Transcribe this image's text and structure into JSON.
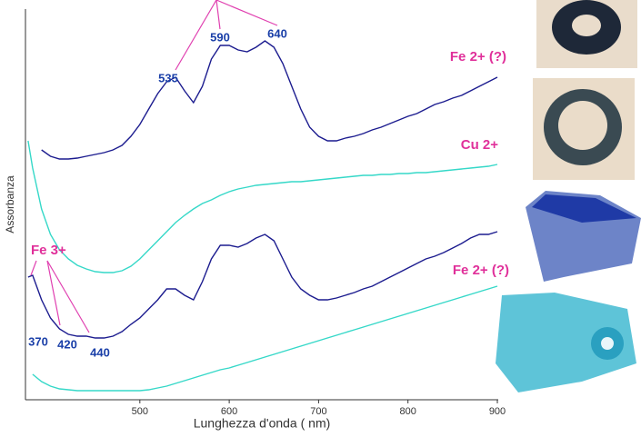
{
  "chart_data": {
    "type": "line",
    "x_label": "Lunghezza d'onda   ( nm)",
    "y_label": "Assorbanza",
    "x": [
      375,
      380,
      390,
      400,
      410,
      420,
      430,
      440,
      450,
      460,
      470,
      480,
      490,
      500,
      510,
      520,
      530,
      540,
      550,
      560,
      570,
      580,
      590,
      600,
      610,
      620,
      630,
      640,
      650,
      660,
      670,
      680,
      690,
      700,
      710,
      720,
      730,
      740,
      750,
      760,
      770,
      780,
      790,
      800,
      810,
      820,
      830,
      840,
      850,
      860,
      870,
      880,
      890,
      900
    ],
    "xlim": [
      372,
      900
    ],
    "xticks": [
      500,
      600,
      700,
      800,
      900
    ],
    "ylim": [
      0,
      43
    ],
    "series": [
      {
        "name": "Fe 2+ (?)",
        "color": "#1c1c8f",
        "values": [
          null,
          null,
          27.5,
          26.8,
          26.5,
          26.5,
          26.6,
          26.8,
          27,
          27.2,
          27.5,
          28,
          29,
          30.3,
          32,
          33.7,
          35,
          35.5,
          34,
          32.7,
          34.5,
          37.5,
          39,
          39,
          38.5,
          38.3,
          38.8,
          39.5,
          38.8,
          37,
          34.5,
          32,
          30,
          29,
          28.5,
          28.5,
          28.8,
          29,
          29.3,
          29.7,
          30,
          30.4,
          30.8,
          31.2,
          31.5,
          32,
          32.5,
          32.8,
          33.2,
          33.5,
          34,
          34.5,
          35,
          35.5
        ]
      },
      {
        "name": "Cu 2+",
        "color": "#35d8c8",
        "values": [
          28.5,
          25.5,
          21,
          18.2,
          16.5,
          15.5,
          14.8,
          14.4,
          14.1,
          14,
          14,
          14.2,
          14.7,
          15.5,
          16.5,
          17.5,
          18.5,
          19.5,
          20.3,
          21,
          21.6,
          22,
          22.5,
          22.9,
          23.2,
          23.4,
          23.6,
          23.7,
          23.8,
          23.9,
          24,
          24,
          24.1,
          24.2,
          24.3,
          24.4,
          24.5,
          24.6,
          24.7,
          24.7,
          24.8,
          24.8,
          24.9,
          24.9,
          25,
          25,
          25.1,
          25.2,
          25.3,
          25.4,
          25.5,
          25.6,
          25.7,
          25.9
        ]
      },
      {
        "color": "#1c1c8f",
        "values": [
          13.5,
          13.7,
          11,
          9,
          7.8,
          7.2,
          7,
          7,
          6.8,
          6.8,
          7,
          7.5,
          8.3,
          9,
          10,
          11,
          12.2,
          12.2,
          11.5,
          11,
          13,
          15.5,
          17,
          17,
          16.8,
          17.2,
          17.8,
          18.2,
          17.5,
          15.5,
          13.5,
          12.2,
          11.5,
          11,
          11,
          11.2,
          11.5,
          11.8,
          12.2,
          12.5,
          13,
          13.5,
          14,
          14.5,
          15,
          15.5,
          15.8,
          16.2,
          16.7,
          17.2,
          17.8,
          18.2,
          18.2,
          18.5
        ]
      },
      {
        "name": "Fe 2+ (?)",
        "color": "#35d8c8",
        "values": [
          null,
          2.8,
          2,
          1.5,
          1.2,
          1.1,
          1,
          1,
          1,
          1,
          1,
          1,
          1,
          1,
          1.1,
          1.3,
          1.5,
          1.8,
          2.1,
          2.4,
          2.7,
          3,
          3.3,
          3.5,
          3.8,
          4.1,
          4.4,
          4.7,
          5,
          5.3,
          5.6,
          5.9,
          6.2,
          6.5,
          6.8,
          7.1,
          7.4,
          7.7,
          8,
          8.3,
          8.6,
          8.9,
          9.2,
          9.5,
          9.8,
          10.1,
          10.4,
          10.7,
          11,
          11.3,
          11.6,
          11.9,
          12.2,
          12.5
        ]
      }
    ],
    "peaks": [
      535,
      590,
      640
    ],
    "fe3_label": "Fe 3+",
    "fe3_peaks": [
      370,
      420,
      440
    ]
  }
}
